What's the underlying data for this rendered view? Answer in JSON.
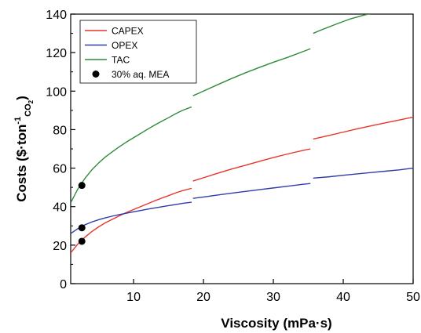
{
  "chart_data": {
    "type": "line",
    "xlabel": "Viscosity (mPa·s)",
    "ylabel": {
      "main": "Costs ($·ton",
      "superscript": "-1",
      "subscript_main": "CO",
      "subscript_sub": "2",
      "close": ")"
    },
    "xlim": [
      1,
      50
    ],
    "ylim": [
      0,
      140
    ],
    "xticks": [
      10,
      20,
      30,
      40,
      50
    ],
    "yticks": [
      0,
      20,
      40,
      60,
      80,
      100,
      120,
      140
    ],
    "grid": false,
    "legend_position": "top-left",
    "series": [
      {
        "name": "CAPEX",
        "color": "#e8352b",
        "segments": [
          {
            "x": [
              1,
              2,
              3,
              4,
              5,
              6,
              7,
              8,
              9,
              10,
              11,
              12,
              13,
              14,
              15,
              16,
              17,
              18.3
            ],
            "y": [
              16,
              20.5,
              24,
              27,
              29.5,
              31.7,
              33.5,
              35.3,
              37,
              38.5,
              40,
              41.5,
              43,
              44.4,
              45.7,
              47.1,
              48.3,
              49.5
            ]
          },
          {
            "x": [
              18.5,
              20,
              22,
              24,
              26,
              28,
              30,
              32,
              34,
              35.3
            ],
            "y": [
              53.3,
              55,
              57.3,
              59.5,
              61.5,
              63.5,
              65.5,
              67.3,
              69,
              70
            ]
          },
          {
            "x": [
              35.7,
              38,
              40,
              42,
              44,
              46,
              48,
              50
            ],
            "y": [
              75.1,
              77,
              78.7,
              80.4,
              82,
              83.5,
              85,
              86.5
            ]
          }
        ]
      },
      {
        "name": "OPEX",
        "color": "#2e3da8",
        "segments": [
          {
            "x": [
              1,
              2,
              3,
              4,
              5,
              6,
              7,
              8,
              9,
              10,
              11,
              12,
              13,
              14,
              15,
              16,
              17,
              18.3
            ],
            "y": [
              26,
              28.5,
              30.5,
              32,
              33.2,
              34.2,
              35.1,
              35.9,
              36.6,
              37.3,
              38,
              38.7,
              39.3,
              39.9,
              40.5,
              41.1,
              41.7,
              42.3
            ]
          },
          {
            "x": [
              18.5,
              20,
              22,
              24,
              26,
              28,
              30,
              32,
              34,
              35.3
            ],
            "y": [
              44.3,
              45,
              46,
              47,
              47.9,
              48.8,
              49.7,
              50.6,
              51.5,
              52
            ]
          },
          {
            "x": [
              35.7,
              38,
              40,
              42,
              44,
              46,
              48,
              50
            ],
            "y": [
              54.8,
              55.5,
              56.3,
              57,
              57.7,
              58.4,
              59.1,
              60
            ]
          }
        ]
      },
      {
        "name": "TAC",
        "color": "#2f8c3a",
        "segments": [
          {
            "x": [
              1,
              2,
              3,
              4,
              5,
              6,
              7,
              8,
              9,
              10,
              11,
              12,
              13,
              14,
              15,
              16,
              17,
              18.3
            ],
            "y": [
              42,
              49,
              54.5,
              59,
              62.7,
              65.9,
              68.6,
              71.2,
              73.6,
              75.8,
              78,
              80.2,
              82.3,
              84.3,
              86.2,
              88.2,
              90,
              91.8
            ]
          },
          {
            "x": [
              18.5,
              20,
              22,
              24,
              26,
              28,
              30,
              32,
              34,
              35.3
            ],
            "y": [
              97.6,
              100,
              103.3,
              106.5,
              109.5,
              112.3,
              115,
              117.5,
              120.2,
              122
            ]
          },
          {
            "x": [
              35.7,
              37,
              39,
              41,
              43,
              44.5
            ],
            "y": [
              130,
              132,
              134.8,
              137.5,
              139.5,
              140.8
            ]
          }
        ]
      },
      {
        "name": "30% aq. MEA",
        "color": "#000000",
        "marker": "circle",
        "x": [
          2.6,
          2.6,
          2.6
        ],
        "y": [
          51,
          29,
          22
        ]
      }
    ]
  }
}
